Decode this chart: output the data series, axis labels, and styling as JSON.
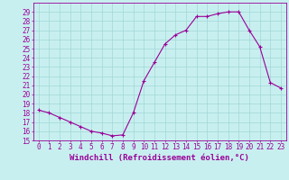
{
  "x": [
    0,
    1,
    2,
    3,
    4,
    5,
    6,
    7,
    8,
    9,
    10,
    11,
    12,
    13,
    14,
    15,
    16,
    17,
    18,
    19,
    20,
    21,
    22,
    23
  ],
  "y": [
    18.3,
    18.0,
    17.5,
    17.0,
    16.5,
    16.0,
    15.8,
    15.5,
    15.6,
    18.0,
    21.5,
    23.5,
    25.5,
    26.5,
    27.0,
    28.5,
    28.5,
    28.8,
    29.0,
    29.0,
    27.0,
    25.2,
    21.3,
    20.7
  ],
  "line_color": "#990099",
  "marker": "+",
  "xlabel": "Windchill (Refroidissement éolien,°C)",
  "bg_color": "#c8efef",
  "grid_color": "#a0d8d8",
  "xlim": [
    -0.5,
    23.5
  ],
  "ylim": [
    15,
    30
  ],
  "yticks": [
    15,
    16,
    17,
    18,
    19,
    20,
    21,
    22,
    23,
    24,
    25,
    26,
    27,
    28,
    29
  ],
  "xticks": [
    0,
    1,
    2,
    3,
    4,
    5,
    6,
    7,
    8,
    9,
    10,
    11,
    12,
    13,
    14,
    15,
    16,
    17,
    18,
    19,
    20,
    21,
    22,
    23
  ],
  "tick_color": "#990099",
  "font_color": "#990099",
  "xlabel_fontsize": 6.5,
  "tick_fontsize": 5.5
}
